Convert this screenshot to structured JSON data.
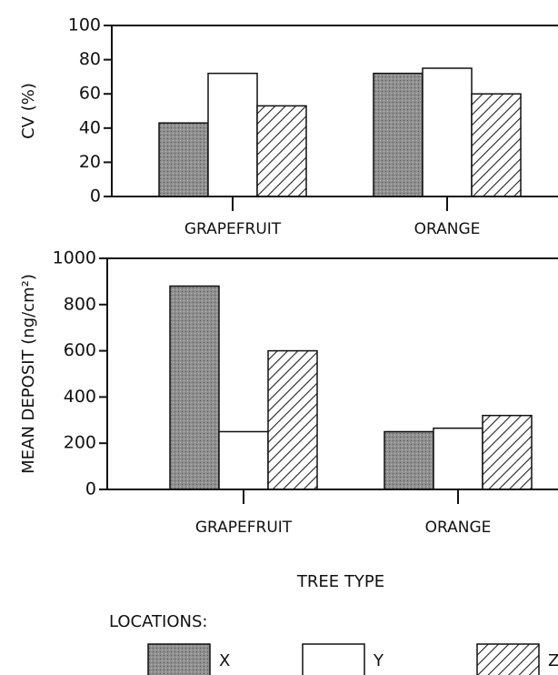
{
  "chart_data": [
    {
      "type": "bar",
      "ylabel": "CV (%)",
      "categories": [
        "GRAPEFRUIT",
        "ORANGE"
      ],
      "series": [
        {
          "color": "#8f8f8f",
          "values": [
            43,
            72
          ]
        },
        {
          "color": "#ffffff",
          "values": [
            72,
            75
          ]
        },
        {
          "color": "#ffffff",
          "pattern": "hatch",
          "values": [
            53,
            60
          ]
        }
      ],
      "ylim": [
        0,
        100
      ],
      "yticks": [
        0,
        20,
        40,
        60,
        80,
        100
      ]
    },
    {
      "type": "bar",
      "ylabel": "MEAN DEPOSIT (ng/cm²)",
      "xlabel": "TREE TYPE",
      "categories": [
        "GRAPEFRUIT",
        "ORANGE"
      ],
      "legend_title": "LOCATIONS:",
      "series": [
        {
          "name": "X",
          "color": "#8f8f8f",
          "values": [
            880,
            250
          ]
        },
        {
          "name": "Y",
          "color": "#ffffff",
          "values": [
            250,
            265
          ]
        },
        {
          "name": "Z",
          "color": "#ffffff",
          "pattern": "hatch",
          "values": [
            600,
            320
          ]
        }
      ],
      "ylim": [
        0,
        1000
      ],
      "yticks": [
        0,
        200,
        400,
        600,
        800,
        1000
      ]
    }
  ]
}
